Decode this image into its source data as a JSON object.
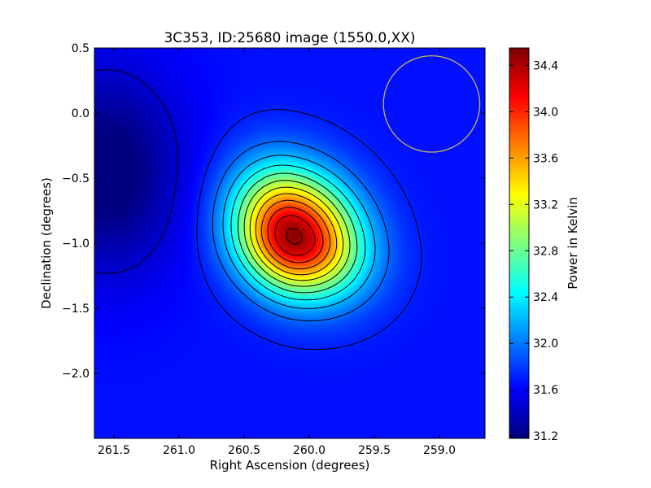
{
  "chart_data": {
    "type": "heatmap",
    "title": "3C353, ID:25680 image (1550.0,XX)",
    "xlabel": "Right Ascension (degrees)",
    "ylabel": "Declination (degrees)",
    "xlim": [
      261.65,
      258.65
    ],
    "ylim": [
      -2.5,
      0.5
    ],
    "x_ticks": [
      261.5,
      261.0,
      260.5,
      260.0,
      259.5,
      259.0
    ],
    "x_tick_labels": [
      "261.5",
      "261.0",
      "260.5",
      "260.0",
      "259.5",
      "259.0"
    ],
    "y_ticks": [
      0.5,
      0.0,
      -0.5,
      -1.0,
      -1.5,
      -2.0
    ],
    "y_tick_labels": [
      "0.5",
      "0.0",
      "−0.5",
      "−1.0",
      "−1.5",
      "−2.0"
    ],
    "colorbar": {
      "label": "Power in Kelvin",
      "range": [
        31.18,
        34.55
      ],
      "ticks": [
        34.4,
        34.0,
        33.6,
        33.2,
        32.8,
        32.4,
        32.0,
        31.6,
        31.2
      ],
      "tick_labels": [
        "34.4",
        "34.0",
        "33.6",
        "33.2",
        "32.8",
        "32.4",
        "32.0",
        "31.6",
        "31.2"
      ],
      "colormap": "jet"
    },
    "source_peak": {
      "ra": 260.12,
      "dec": -0.95,
      "value": 34.5
    },
    "background_value": 31.65,
    "minimum_region": {
      "ra": 261.55,
      "dec": -0.45,
      "value": 31.2
    },
    "beam_circle": {
      "ra": 259.06,
      "dec": 0.07,
      "radius_deg": 0.37,
      "color": "#c8b45a"
    },
    "contour_color": "#000000",
    "grid": false,
    "legend": "none"
  }
}
